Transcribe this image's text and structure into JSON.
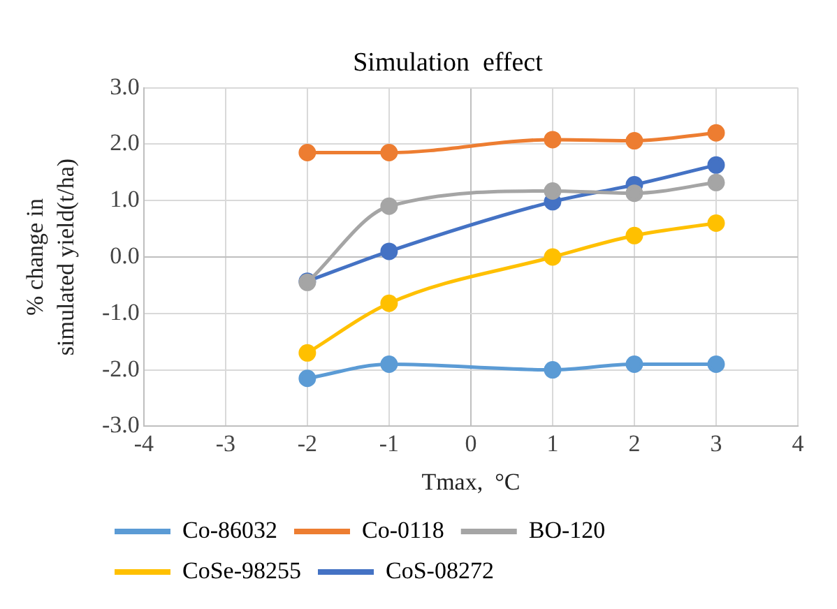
{
  "chart_data": {
    "type": "line",
    "title": "Simulation  effect",
    "xlabel": "Tmax,  °C",
    "ylabel": "% change in simulated yield(t/ha)",
    "x": [
      -2,
      -1,
      1,
      2,
      3
    ],
    "series": [
      {
        "name": "Co-86032",
        "color": "#5b9bd5",
        "values": [
          -2.15,
          -1.9,
          -2.0,
          -1.9,
          -1.9
        ]
      },
      {
        "name": "Co-0118",
        "color": "#ed7d31",
        "values": [
          1.85,
          1.85,
          2.08,
          2.06,
          2.2
        ]
      },
      {
        "name": "BO-120",
        "color": "#a5a5a5",
        "values": [
          -0.45,
          0.9,
          1.17,
          1.13,
          1.32
        ]
      },
      {
        "name": "CoSe-98255",
        "color": "#ffc000",
        "values": [
          -1.7,
          -0.82,
          0.0,
          0.38,
          0.6
        ]
      },
      {
        "name": "CoS-08272",
        "color": "#4472c4",
        "values": [
          -0.43,
          0.1,
          0.98,
          1.28,
          1.63
        ]
      }
    ],
    "xlim": [
      -4,
      4
    ],
    "xticks": [
      -4,
      -3,
      -2,
      -1,
      0,
      1,
      2,
      3,
      4
    ],
    "ylim": [
      -3,
      3
    ],
    "yticks": [
      {
        "value": -3,
        "label": "-3.0"
      },
      {
        "value": -2,
        "label": "-2.0"
      },
      {
        "value": -1,
        "label": "-1.0"
      },
      {
        "value": 0,
        "label": "0.0"
      },
      {
        "value": 1,
        "label": "1.0"
      },
      {
        "value": 2,
        "label": "2.0"
      },
      {
        "value": 3,
        "label": "3.0"
      }
    ],
    "grid": true,
    "legend": "bottom",
    "marker": "circle",
    "line_style": "solid"
  }
}
